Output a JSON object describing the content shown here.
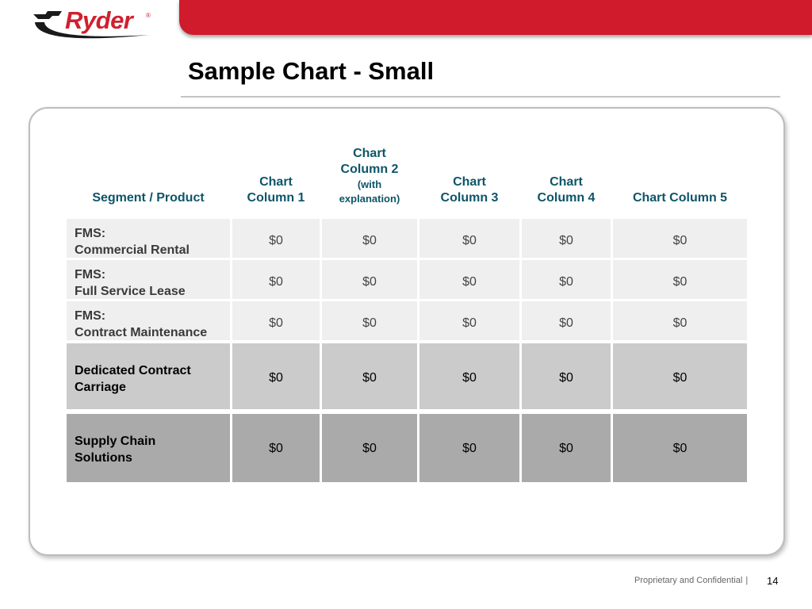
{
  "header": {
    "logo_text": "Ryder",
    "logo_registered": "®",
    "brand_color": "#cf1b2b"
  },
  "slide": {
    "title": "Sample Chart - Small"
  },
  "table": {
    "headers": {
      "segment": "Segment / Product",
      "col1_line1": "Chart",
      "col1_line2": "Column 1",
      "col2_line1": "Chart",
      "col2_line2": "Column 2",
      "col2_line3": "(with",
      "col2_line4": "explanation)",
      "col3_line1": "Chart",
      "col3_line2": "Column 3",
      "col4_line1": "Chart",
      "col4_line2": "Column 4",
      "col5": "Chart Column 5"
    },
    "rows": [
      {
        "label_line1": "FMS:",
        "label_line2": "Commercial Rental",
        "values": [
          "$0",
          "$0",
          "$0",
          "$0",
          "$0"
        ]
      },
      {
        "label_line1": "FMS:",
        "label_line2": "Full Service Lease",
        "values": [
          "$0",
          "$0",
          "$0",
          "$0",
          "$0"
        ]
      },
      {
        "label_line1": "FMS:",
        "label_line2": "Contract Maintenance",
        "values": [
          "$0",
          "$0",
          "$0",
          "$0",
          "$0"
        ]
      },
      {
        "label_line1": "Dedicated Contract",
        "label_line2": "Carriage",
        "values": [
          "$0",
          "$0",
          "$0",
          "$0",
          "$0"
        ]
      },
      {
        "label_line1": "Supply Chain",
        "label_line2": "Solutions",
        "values": [
          "$0",
          "$0",
          "$0",
          "$0",
          "$0"
        ]
      }
    ]
  },
  "footer": {
    "confidential": "Proprietary and Confidential",
    "separator": "|",
    "page_number": "14"
  }
}
